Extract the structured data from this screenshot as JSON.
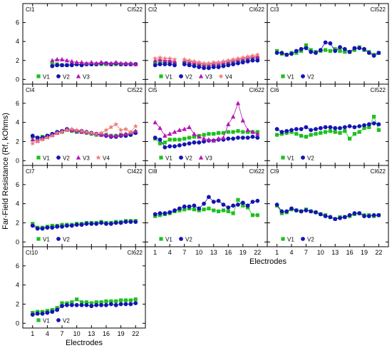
{
  "figure": {
    "ylabel": "Far-Field Resistance (Rf, kOhms)",
    "xlabel": "Electrodes",
    "xticks": [
      1,
      4,
      7,
      10,
      13,
      16,
      19,
      22
    ],
    "yticks": [
      0,
      2,
      4,
      6
    ],
    "series_colors": {
      "V1": "#1fbf1f",
      "V2": "#1414b4",
      "V3": "#b414b4",
      "V4": "#f07878"
    },
    "series_markers": {
      "V1": "square",
      "V2": "circle",
      "V3": "triangle",
      "V4": "star"
    }
  },
  "chart_data": [
    {
      "type": "scatter",
      "title": "CI1",
      "device": "CI522",
      "xlim": [
        -1,
        24
      ],
      "ylim": [
        -0.5,
        8
      ],
      "x": [
        1,
        2,
        3,
        4,
        5,
        6,
        7,
        8,
        9,
        10,
        11,
        12,
        13,
        14,
        15,
        16,
        17,
        18,
        19,
        20,
        21,
        22
      ],
      "series": [
        {
          "name": "V1",
          "values": [
            null,
            null,
            null,
            null,
            1.6,
            1.6,
            1.5,
            1.5,
            1.6,
            1.6,
            1.6,
            1.6,
            1.6,
            1.6,
            1.6,
            1.6,
            1.6,
            1.6,
            1.6,
            1.6,
            1.6,
            1.6
          ]
        },
        {
          "name": "V2",
          "values": [
            null,
            null,
            null,
            null,
            1.4,
            1.5,
            1.5,
            1.5,
            1.5,
            1.6,
            1.5,
            1.6,
            1.6,
            1.6,
            1.7,
            1.7,
            1.6,
            1.7,
            1.6,
            1.6,
            1.6,
            1.6
          ]
        },
        {
          "name": "V3",
          "values": [
            null,
            null,
            null,
            null,
            2.0,
            2.1,
            2.1,
            2.0,
            1.9,
            1.8,
            1.8,
            1.7,
            1.8,
            1.7,
            1.8,
            1.7,
            1.7,
            1.8,
            1.7,
            1.7,
            1.7,
            1.6
          ]
        }
      ]
    },
    {
      "type": "scatter",
      "title": "CI2",
      "device": "CI622",
      "xlim": [
        -1,
        24
      ],
      "ylim": [
        -0.5,
        8
      ],
      "x": [
        1,
        2,
        3,
        4,
        5,
        6,
        7,
        8,
        9,
        10,
        11,
        12,
        13,
        14,
        15,
        16,
        17,
        18,
        19,
        20,
        21,
        22
      ],
      "series": [
        {
          "name": "V1",
          "values": [
            1.7,
            1.8,
            1.8,
            1.8,
            1.7,
            null,
            1.8,
            1.7,
            1.6,
            1.5,
            1.4,
            1.4,
            1.5,
            1.5,
            1.6,
            1.7,
            1.8,
            1.9,
            2.0,
            2.1,
            2.2,
            2.3
          ]
        },
        {
          "name": "V2",
          "values": [
            1.5,
            1.6,
            1.6,
            1.6,
            1.5,
            null,
            1.6,
            1.5,
            1.4,
            1.3,
            1.2,
            1.2,
            1.3,
            1.3,
            1.4,
            1.5,
            1.6,
            1.7,
            1.8,
            1.9,
            2.0,
            2.0
          ]
        },
        {
          "name": "V3",
          "values": [
            2.0,
            2.1,
            2.0,
            2.0,
            1.9,
            null,
            2.0,
            1.9,
            1.8,
            1.7,
            1.6,
            1.6,
            1.7,
            1.7,
            1.8,
            1.9,
            2.0,
            2.1,
            2.2,
            2.3,
            2.4,
            2.4
          ]
        },
        {
          "name": "V4",
          "values": [
            2.2,
            2.3,
            2.2,
            2.2,
            2.1,
            null,
            2.1,
            2.0,
            1.9,
            1.8,
            1.7,
            1.7,
            1.8,
            1.8,
            1.9,
            2.0,
            2.1,
            2.2,
            2.3,
            2.4,
            2.5,
            2.6
          ]
        }
      ]
    },
    {
      "type": "scatter",
      "title": "CI3",
      "device": "CI522",
      "xlim": [
        -1,
        24
      ],
      "ylim": [
        -0.5,
        8
      ],
      "x": [
        1,
        2,
        3,
        4,
        5,
        6,
        7,
        8,
        9,
        10,
        11,
        12,
        13,
        14,
        15,
        16,
        17,
        18,
        19,
        20,
        21,
        22
      ],
      "series": [
        {
          "name": "V1",
          "values": [
            3.0,
            2.7,
            2.6,
            2.8,
            2.8,
            3.0,
            3.6,
            3.1,
            2.9,
            3.0,
            3.1,
            3.0,
            3.2,
            3.0,
            2.9,
            2.9,
            3.1,
            3.4,
            3.1,
            2.9,
            2.6,
            2.8
          ]
        },
        {
          "name": "V2",
          "values": [
            2.8,
            2.8,
            2.6,
            2.7,
            3.0,
            3.2,
            3.3,
            2.9,
            2.8,
            3.1,
            3.9,
            3.8,
            3.0,
            3.4,
            3.2,
            2.9,
            3.3,
            3.3,
            3.2,
            2.8,
            2.5,
            2.8
          ]
        }
      ]
    },
    {
      "type": "scatter",
      "title": "CI4",
      "device": "CI522",
      "xlim": [
        -1,
        24
      ],
      "ylim": [
        -0.5,
        8
      ],
      "x": [
        1,
        2,
        3,
        4,
        5,
        6,
        7,
        8,
        9,
        10,
        11,
        12,
        13,
        14,
        15,
        16,
        17,
        18,
        19,
        20,
        21,
        22
      ],
      "series": [
        {
          "name": "V1",
          "values": [
            2.5,
            2.4,
            2.5,
            2.6,
            2.7,
            2.9,
            3.0,
            3.2,
            3.1,
            3.0,
            3.0,
            2.9,
            2.8,
            2.7,
            2.7,
            2.7,
            2.6,
            2.6,
            2.7,
            2.7,
            2.8,
            3.0
          ]
        },
        {
          "name": "V2",
          "values": [
            2.6,
            2.4,
            2.4,
            2.6,
            2.8,
            3.0,
            3.1,
            3.3,
            3.2,
            3.1,
            3.1,
            3.0,
            2.9,
            2.8,
            2.7,
            2.6,
            2.5,
            2.5,
            2.6,
            2.6,
            2.7,
            2.9
          ]
        },
        {
          "name": "V3",
          "values": [
            2.2,
            2.1,
            2.3,
            2.5,
            2.7,
            2.9,
            3.1,
            3.3,
            3.2,
            3.1,
            3.0,
            3.0,
            2.9,
            2.8,
            2.7,
            2.7,
            2.6,
            2.6,
            2.7,
            2.8,
            2.9,
            3.1
          ]
        },
        {
          "name": "V4",
          "values": [
            1.8,
            2.0,
            2.2,
            2.4,
            2.6,
            2.9,
            3.0,
            3.2,
            3.3,
            3.2,
            3.1,
            3.0,
            2.9,
            2.8,
            2.9,
            3.2,
            3.5,
            3.8,
            3.2,
            3.3,
            3.0,
            3.6
          ]
        }
      ]
    },
    {
      "type": "scatter",
      "title": "CI5",
      "device": "CI622",
      "xlim": [
        -1,
        24
      ],
      "ylim": [
        -0.5,
        8
      ],
      "x": [
        1,
        2,
        3,
        4,
        5,
        6,
        7,
        8,
        9,
        10,
        11,
        12,
        13,
        14,
        15,
        16,
        17,
        18,
        19,
        20,
        21,
        22
      ],
      "series": [
        {
          "name": "V1",
          "values": [
            2.3,
            1.8,
            1.9,
            2.2,
            2.2,
            2.2,
            2.3,
            2.4,
            2.5,
            2.6,
            2.7,
            2.8,
            2.8,
            2.9,
            2.9,
            3.0,
            3.0,
            3.1,
            3.0,
            3.0,
            3.0,
            3.0
          ]
        },
        {
          "name": "V2",
          "values": [
            2.4,
            2.2,
            1.4,
            1.5,
            1.5,
            1.6,
            1.7,
            1.8,
            1.9,
            1.9,
            2.0,
            2.1,
            2.1,
            2.2,
            2.2,
            2.3,
            2.3,
            2.4,
            2.4,
            2.4,
            2.5,
            2.4
          ]
        },
        {
          "name": "V3",
          "values": [
            4.0,
            3.4,
            2.6,
            2.8,
            3.0,
            3.2,
            3.3,
            3.5,
            2.8,
            2.5,
            2.3,
            2.2,
            2.1,
            2.3,
            2.4,
            3.8,
            4.6,
            6.0,
            4.2,
            3.2,
            3.0,
            2.8
          ]
        }
      ]
    },
    {
      "type": "scatter",
      "title": "CI6",
      "device": "CI522",
      "xlim": [
        -1,
        24
      ],
      "ylim": [
        -0.5,
        8
      ],
      "x": [
        1,
        2,
        3,
        4,
        5,
        6,
        7,
        8,
        9,
        10,
        11,
        12,
        13,
        14,
        15,
        16,
        17,
        18,
        19,
        20,
        21,
        22
      ],
      "series": [
        {
          "name": "V1",
          "values": [
            2.7,
            2.8,
            2.9,
            3.0,
            2.8,
            2.6,
            2.5,
            2.7,
            2.8,
            2.9,
            3.0,
            3.1,
            3.0,
            2.9,
            3.1,
            2.3,
            2.8,
            3.0,
            3.4,
            3.5,
            4.6,
            3.2
          ]
        },
        {
          "name": "V2",
          "values": [
            3.3,
            3.0,
            3.1,
            3.2,
            3.3,
            3.3,
            3.5,
            3.2,
            3.3,
            3.4,
            3.5,
            3.5,
            3.4,
            3.4,
            3.5,
            3.6,
            3.5,
            3.6,
            3.7,
            3.8,
            3.9,
            3.8
          ]
        }
      ]
    },
    {
      "type": "scatter",
      "title": "CI7",
      "device": "CI422",
      "xlim": [
        -1,
        24
      ],
      "ylim": [
        -0.5,
        8
      ],
      "x": [
        1,
        2,
        3,
        4,
        5,
        6,
        7,
        8,
        9,
        10,
        11,
        12,
        13,
        14,
        15,
        16,
        17,
        18,
        19,
        20,
        21,
        22
      ],
      "series": [
        {
          "name": "V1",
          "values": [
            1.9,
            1.5,
            1.5,
            1.6,
            1.7,
            1.7,
            1.8,
            1.8,
            1.8,
            1.9,
            1.9,
            2.0,
            2.0,
            2.0,
            2.1,
            2.0,
            2.0,
            2.1,
            2.1,
            2.2,
            2.2,
            2.2
          ]
        },
        {
          "name": "V2",
          "values": [
            1.7,
            1.4,
            1.4,
            1.5,
            1.5,
            1.6,
            1.6,
            1.7,
            1.7,
            1.8,
            1.8,
            1.9,
            1.9,
            1.9,
            2.0,
            1.9,
            1.9,
            2.0,
            2.0,
            2.1,
            2.1,
            2.1
          ]
        }
      ]
    },
    {
      "type": "scatter",
      "title": "CI8",
      "device": "CI622",
      "xlim": [
        -1,
        24
      ],
      "ylim": [
        -0.5,
        8
      ],
      "x": [
        1,
        2,
        3,
        4,
        5,
        6,
        7,
        8,
        9,
        10,
        11,
        12,
        13,
        14,
        15,
        16,
        17,
        18,
        19,
        20,
        21,
        22
      ],
      "series": [
        {
          "name": "V1",
          "values": [
            2.7,
            2.8,
            2.9,
            3.0,
            3.2,
            3.3,
            3.4,
            3.5,
            3.4,
            3.3,
            3.4,
            3.5,
            3.3,
            3.2,
            3.3,
            3.2,
            3.0,
            4.4,
            3.8,
            3.6,
            2.8,
            2.8
          ]
        },
        {
          "name": "V2",
          "values": [
            2.9,
            3.0,
            3.0,
            3.1,
            3.3,
            3.5,
            3.7,
            3.7,
            3.8,
            3.5,
            4.0,
            4.7,
            4.2,
            4.3,
            3.9,
            3.6,
            3.8,
            3.9,
            4.1,
            3.8,
            4.2,
            4.3
          ]
        }
      ]
    },
    {
      "type": "scatter",
      "title": "CI9",
      "device": "CI622",
      "xlim": [
        -1,
        24
      ],
      "ylim": [
        -0.5,
        8
      ],
      "x": [
        1,
        2,
        3,
        4,
        5,
        6,
        7,
        8,
        9,
        10,
        11,
        12,
        13,
        14,
        15,
        16,
        17,
        18,
        19,
        20,
        21,
        22
      ],
      "series": [
        {
          "name": "V1",
          "values": [
            3.8,
            3.0,
            3.1,
            3.4,
            3.3,
            3.2,
            3.4,
            3.2,
            3.1,
            2.9,
            2.8,
            2.6,
            2.4,
            2.6,
            2.6,
            2.7,
            2.9,
            3.0,
            2.8,
            2.8,
            2.7,
            2.8
          ]
        },
        {
          "name": "V2",
          "values": [
            3.9,
            3.2,
            3.2,
            3.5,
            3.3,
            3.2,
            3.3,
            3.2,
            3.1,
            2.9,
            2.7,
            2.6,
            2.4,
            2.5,
            2.6,
            2.8,
            3.0,
            3.0,
            2.7,
            2.7,
            2.8,
            2.8
          ]
        }
      ]
    },
    {
      "type": "scatter",
      "title": "CI10",
      "device": "CI622",
      "xlim": [
        -1,
        24
      ],
      "ylim": [
        -0.5,
        8
      ],
      "x": [
        1,
        2,
        3,
        4,
        5,
        6,
        7,
        8,
        9,
        10,
        11,
        12,
        13,
        14,
        15,
        16,
        17,
        18,
        19,
        20,
        21,
        22
      ],
      "series": [
        {
          "name": "V1",
          "values": [
            1.1,
            1.2,
            1.2,
            1.3,
            1.4,
            1.6,
            2.1,
            2.1,
            2.2,
            2.5,
            2.2,
            2.2,
            2.1,
            2.2,
            2.2,
            2.3,
            2.3,
            2.3,
            2.4,
            2.4,
            2.4,
            2.5
          ]
        },
        {
          "name": "V2",
          "values": [
            0.9,
            1.0,
            1.0,
            1.1,
            1.2,
            1.4,
            1.8,
            1.9,
            1.9,
            1.9,
            1.9,
            1.9,
            1.8,
            1.9,
            1.9,
            1.9,
            2.0,
            1.9,
            2.0,
            2.0,
            2.0,
            2.1
          ]
        }
      ]
    }
  ]
}
